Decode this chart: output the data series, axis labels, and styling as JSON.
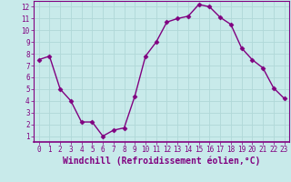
{
  "x": [
    0,
    1,
    2,
    3,
    4,
    5,
    6,
    7,
    8,
    9,
    10,
    11,
    12,
    13,
    14,
    15,
    16,
    17,
    18,
    19,
    20,
    21,
    22,
    23
  ],
  "y": [
    7.5,
    7.8,
    5.0,
    4.0,
    2.2,
    2.2,
    1.0,
    1.5,
    1.7,
    4.4,
    7.8,
    9.0,
    10.7,
    11.0,
    11.2,
    12.2,
    12.0,
    11.1,
    10.5,
    8.5,
    7.5,
    6.8,
    5.1,
    4.2
  ],
  "line_color": "#800080",
  "marker": "D",
  "markersize": 2.5,
  "linewidth": 1.0,
  "bg_color": "#c8eaea",
  "grid_color": "#b0d8d8",
  "xlabel": "Windchill (Refroidissement éolien,°C)",
  "ylabel": "",
  "xlim": [
    -0.5,
    23.5
  ],
  "ylim": [
    0.5,
    12.5
  ],
  "yticks": [
    1,
    2,
    3,
    4,
    5,
    6,
    7,
    8,
    9,
    10,
    11,
    12
  ],
  "xticks": [
    0,
    1,
    2,
    3,
    4,
    5,
    6,
    7,
    8,
    9,
    10,
    11,
    12,
    13,
    14,
    15,
    16,
    17,
    18,
    19,
    20,
    21,
    22,
    23
  ],
  "tick_fontsize": 5.5,
  "xlabel_fontsize": 7.0,
  "tick_color": "#800080",
  "xlabel_color": "#800080",
  "spine_color": "#800080",
  "axis_bottom_color": "#800080"
}
